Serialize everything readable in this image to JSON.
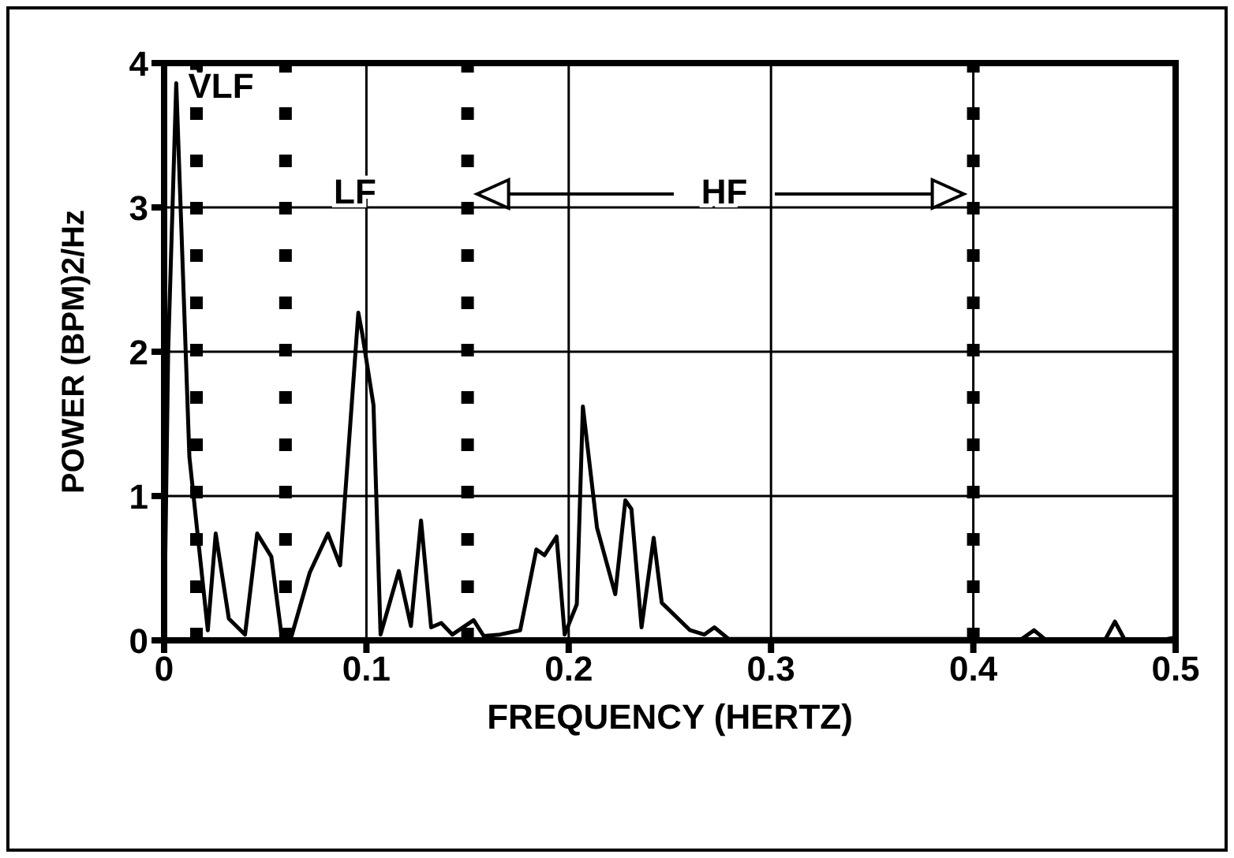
{
  "chart_data": {
    "type": "line",
    "xlabel": "FREQUENCY (HERTZ)",
    "ylabel": "POWER (BPM)2/Hz",
    "series": [
      {
        "color": "#000000",
        "x": [
          0,
          0.002,
          0.006,
          0.0125,
          0.0216,
          0.0255,
          0.032,
          0.04,
          0.046,
          0.053,
          0.058,
          0.063,
          0.072,
          0.081,
          0.087,
          0.096,
          0.098,
          0.1035,
          0.107,
          0.116,
          0.122,
          0.127,
          0.132,
          0.137,
          0.1425,
          0.153,
          0.158,
          0.166,
          0.176,
          0.184,
          0.188,
          0.194,
          0.198,
          0.204,
          0.207,
          0.214,
          0.223,
          0.228,
          0.231,
          0.236,
          0.242,
          0.246,
          0.26,
          0.267,
          0.272,
          0.279,
          0.3,
          0.35,
          0.4,
          0.423,
          0.43,
          0.436,
          0.465,
          0.47,
          0.475,
          0.496,
          0.5
        ],
        "values": [
          0,
          2.0,
          3.86,
          1.27,
          0.07,
          0.74,
          0.15,
          0.04,
          0.74,
          0.58,
          0.04,
          0.03,
          0.47,
          0.74,
          0.52,
          2.27,
          2.12,
          1.63,
          0.04,
          0.48,
          0.1,
          0.83,
          0.09,
          0.12,
          0.04,
          0.14,
          0.03,
          0.04,
          0.07,
          0.63,
          0.59,
          0.72,
          0.04,
          0.25,
          1.62,
          0.78,
          0.32,
          0.97,
          0.91,
          0.09,
          0.71,
          0.26,
          0.07,
          0.04,
          0.09,
          0.01,
          0.01,
          0.01,
          0.01,
          0,
          0.07,
          0,
          0,
          0.13,
          0,
          0.01,
          0.02
        ]
      }
    ],
    "xlim": [
      0,
      0.5
    ],
    "xticks": [
      0,
      0.1,
      0.2,
      0.3,
      0.4,
      0.5
    ],
    "ylim": [
      0,
      4
    ],
    "yticks": [
      0,
      1,
      2,
      3,
      4
    ],
    "grid": true,
    "marker": "none",
    "line_style": "solid",
    "ref_lines": [
      {
        "axis": "x",
        "value": 0.016,
        "color": "#000000",
        "line_style": "dotted"
      },
      {
        "axis": "x",
        "value": 0.06,
        "color": "#000000",
        "line_style": "dotted"
      },
      {
        "axis": "x",
        "value": 0.15,
        "color": "#000000",
        "line_style": "dotted"
      },
      {
        "axis": "x",
        "value": 0.4,
        "color": "#000000",
        "line_style": "dotted"
      }
    ],
    "annotations": [
      "VLF",
      "LF",
      "HF"
    ]
  }
}
